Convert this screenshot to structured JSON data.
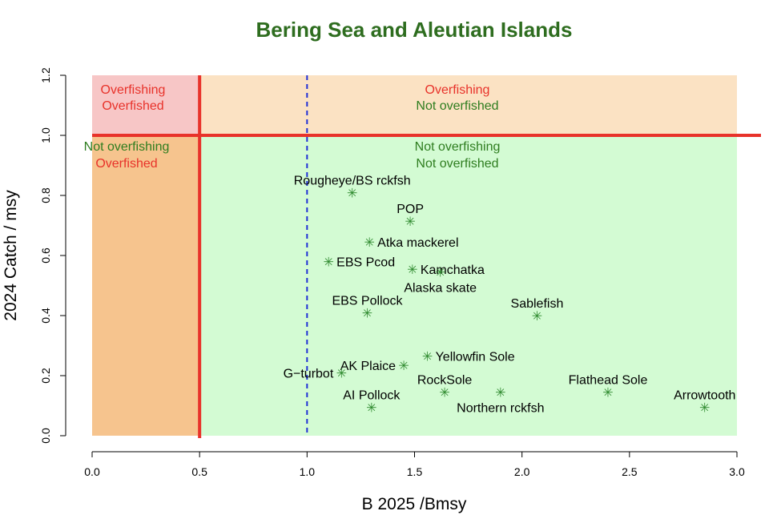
{
  "chart_data": {
    "type": "scatter",
    "title": "Bering Sea and Aleutian Islands",
    "xlabel": "B 2025 /Bmsy",
    "ylabel": "2024 Catch / msy",
    "xlim": [
      0,
      3
    ],
    "ylim": [
      0,
      1.2
    ],
    "x_ticks": [
      "0.0",
      "0.5",
      "1.0",
      "1.5",
      "2.0",
      "2.5",
      "3.0"
    ],
    "y_ticks": [
      "0.0",
      "0.2",
      "0.4",
      "0.6",
      "0.8",
      "1.0",
      "1.2"
    ],
    "grid": false,
    "reference_lines": {
      "x_limit": 0.5,
      "y_limit": 1.0,
      "x_target": 1.0
    },
    "regions": [
      {
        "lines": [
          "Overfishing",
          "Overfished"
        ],
        "colors": [
          "#e8322a",
          "#e8322a"
        ],
        "fill": "#f7c6c6"
      },
      {
        "lines": [
          "Overfishing",
          "Not overfished"
        ],
        "colors": [
          "#e8322a",
          "#2e7d1f"
        ],
        "fill": "#fbe2c3"
      },
      {
        "lines": [
          "Not overfishing",
          "Overfished"
        ],
        "colors": [
          "#2e7d1f",
          "#e8322a"
        ],
        "fill": "#f6c48e"
      },
      {
        "lines": [
          "Not overfishing",
          "Not overfished"
        ],
        "colors": [
          "#2e7d1f",
          "#2e7d1f"
        ],
        "fill": "#d3fbd3"
      }
    ],
    "marker_glyph": "✳",
    "marker_color": "#2f8a2f",
    "points": [
      {
        "label": "Rougheye/BS rckfsh",
        "x": 1.21,
        "y": 0.81,
        "label_pos": "above"
      },
      {
        "label": "POP",
        "x": 1.48,
        "y": 0.715,
        "label_pos": "above"
      },
      {
        "label": "Atka mackerel",
        "x": 1.29,
        "y": 0.645,
        "label_pos": "right"
      },
      {
        "label": "EBS Pcod",
        "x": 1.1,
        "y": 0.58,
        "label_pos": "right"
      },
      {
        "label": "Kamchatka",
        "x": 1.49,
        "y": 0.555,
        "label_pos": "right"
      },
      {
        "label": "Alaska skate",
        "x": 1.62,
        "y": 0.545,
        "label_pos": "below"
      },
      {
        "label": "EBS Pollock",
        "x": 1.28,
        "y": 0.41,
        "label_pos": "above"
      },
      {
        "label": "Sablefish",
        "x": 2.07,
        "y": 0.4,
        "label_pos": "above"
      },
      {
        "label": "Yellowfin Sole",
        "x": 1.56,
        "y": 0.265,
        "label_pos": "right"
      },
      {
        "label": "AK Plaice",
        "x": 1.45,
        "y": 0.235,
        "label_pos": "left"
      },
      {
        "label": "G−turbot",
        "x": 1.16,
        "y": 0.21,
        "label_pos": "left"
      },
      {
        "label": "RockSole",
        "x": 1.64,
        "y": 0.145,
        "label_pos": "above"
      },
      {
        "label": "Northern rckfsh",
        "x": 1.9,
        "y": 0.145,
        "label_pos": "below"
      },
      {
        "label": "Flathead Sole",
        "x": 2.4,
        "y": 0.145,
        "label_pos": "above"
      },
      {
        "label": "Arrowtooth",
        "x": 2.85,
        "y": 0.095,
        "label_pos": "above"
      },
      {
        "label": "AI Pollock",
        "x": 1.3,
        "y": 0.095,
        "label_pos": "above"
      }
    ]
  },
  "colors": {
    "title": "#2e6d1f",
    "limit_line": "#e8322a",
    "target_line": "#1f2fd6"
  }
}
